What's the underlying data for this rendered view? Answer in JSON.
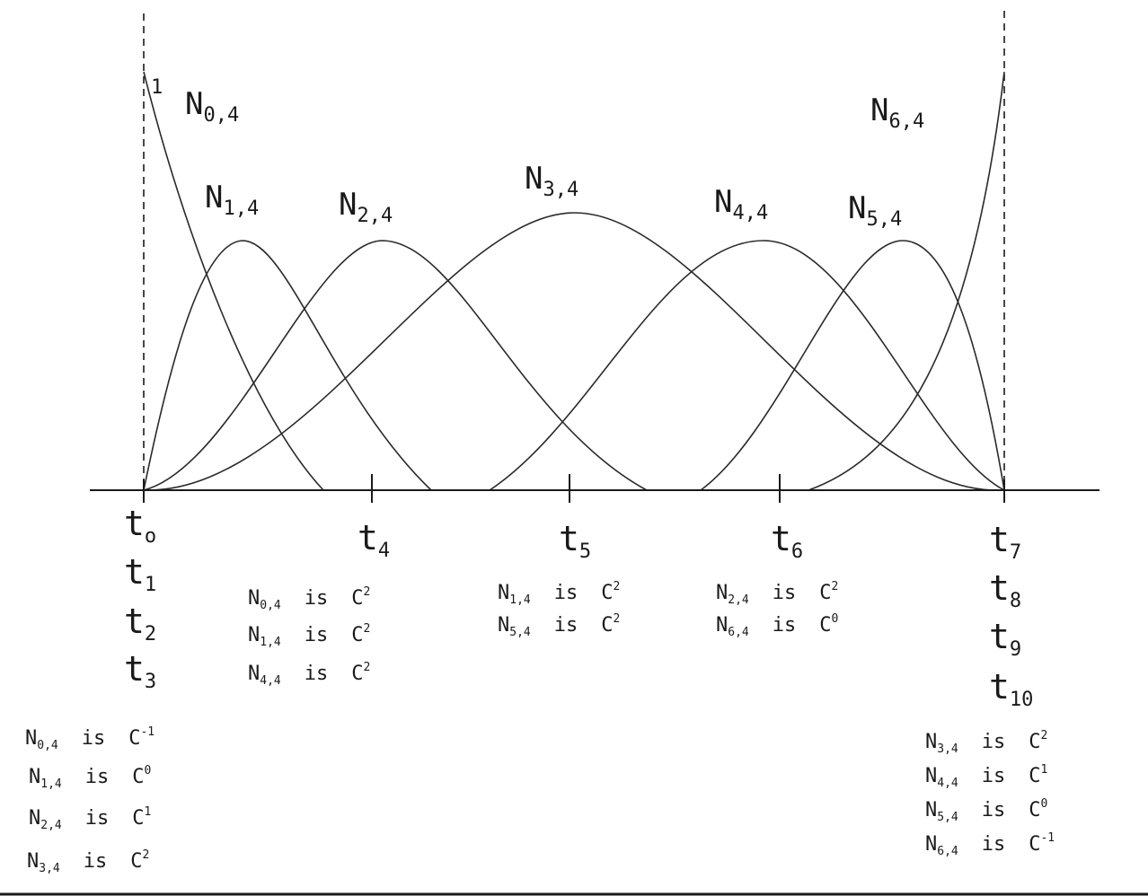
{
  "axis": {
    "knot_labels": [
      {
        "id": "t0",
        "base": "t",
        "sub": "o"
      },
      {
        "id": "t1",
        "base": "t",
        "sub": "1"
      },
      {
        "id": "t2",
        "base": "t",
        "sub": "2"
      },
      {
        "id": "t3",
        "base": "t",
        "sub": "3"
      },
      {
        "id": "t4",
        "base": "t",
        "sub": "4"
      },
      {
        "id": "t5",
        "base": "t",
        "sub": "5"
      },
      {
        "id": "t6",
        "base": "t",
        "sub": "6"
      },
      {
        "id": "t7",
        "base": "t",
        "sub": "7"
      },
      {
        "id": "t8",
        "base": "t",
        "sub": "8"
      },
      {
        "id": "t9",
        "base": "t",
        "sub": "9"
      },
      {
        "id": "t10",
        "base": "t",
        "sub": "10"
      }
    ],
    "unit_label": "1"
  },
  "basis_labels": [
    {
      "id": "N04",
      "base": "N",
      "sub": "0,4"
    },
    {
      "id": "N14",
      "base": "N",
      "sub": "1,4"
    },
    {
      "id": "N24",
      "base": "N",
      "sub": "2,4"
    },
    {
      "id": "N34",
      "base": "N",
      "sub": "3,4"
    },
    {
      "id": "N44",
      "base": "N",
      "sub": "4,4"
    },
    {
      "id": "N54",
      "base": "N",
      "sub": "5,4"
    },
    {
      "id": "N64",
      "base": "N",
      "sub": "6,4"
    }
  ],
  "continuity_groups": [
    {
      "id": "at-t0",
      "lines": [
        {
          "n": "N",
          "sub": "0,4",
          "is": "is",
          "c": "C",
          "sup": "-1"
        },
        {
          "n": "N",
          "sub": "1,4",
          "is": "is",
          "c": "C",
          "sup": "0"
        },
        {
          "n": "N",
          "sub": "2,4",
          "is": "is",
          "c": "C",
          "sup": "1"
        },
        {
          "n": "N",
          "sub": "3,4",
          "is": "is",
          "c": "C",
          "sup": "2"
        }
      ]
    },
    {
      "id": "at-t4",
      "lines": [
        {
          "n": "N",
          "sub": "0,4",
          "is": "is",
          "c": "C",
          "sup": "2"
        },
        {
          "n": "N",
          "sub": "1,4",
          "is": "is",
          "c": "C",
          "sup": "2"
        },
        {
          "n": "N",
          "sub": "4,4",
          "is": "is",
          "c": "C",
          "sup": "2"
        }
      ]
    },
    {
      "id": "at-t5",
      "lines": [
        {
          "n": "N",
          "sub": "1,4",
          "is": "is",
          "c": "C",
          "sup": "2"
        },
        {
          "n": "N",
          "sub": "5,4",
          "is": "is",
          "c": "C",
          "sup": "2"
        }
      ]
    },
    {
      "id": "at-t6",
      "lines": [
        {
          "n": "N",
          "sub": "2,4",
          "is": "is",
          "c": "C",
          "sup": "2"
        },
        {
          "n": "N",
          "sub": "6,4",
          "is": "is",
          "c": "C",
          "sup": "0"
        }
      ]
    },
    {
      "id": "at-t7",
      "lines": [
        {
          "n": "N",
          "sub": "3,4",
          "is": "is",
          "c": "C",
          "sup": "2"
        },
        {
          "n": "N",
          "sub": "4,4",
          "is": "is",
          "c": "C",
          "sup": "1"
        },
        {
          "n": "N",
          "sub": "5,4",
          "is": "is",
          "c": "C",
          "sup": "0"
        },
        {
          "n": "N",
          "sub": "6,4",
          "is": "is",
          "c": "C",
          "sup": "-1"
        }
      ]
    }
  ],
  "colors": {
    "ink": "#1a1a1a",
    "background": "#ffffff"
  }
}
